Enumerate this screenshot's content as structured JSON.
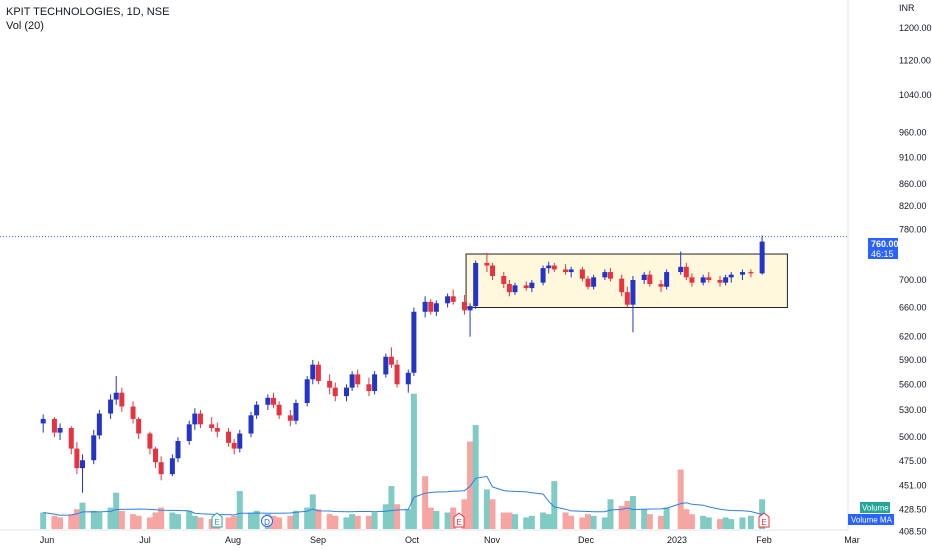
{
  "header": {
    "symbol_line": "KPIT TECHNOLOGIES, 1D, NSE",
    "volume_line": "Vol (20)"
  },
  "price_axis": {
    "currency": "INR",
    "ticks": [
      "1200.00",
      "1120.00",
      "1040.00",
      "960.00",
      "910.00",
      "860.00",
      "820.00",
      "780.00",
      "700.00",
      "660.00",
      "620.00",
      "590.00",
      "560.00",
      "530.00",
      "500.00",
      "475.00",
      "451.00",
      "428.50",
      "408.50"
    ],
    "last_price": "760.00",
    "countdown": "46:15",
    "volume_label": "Volume",
    "volume_ma_label": "Volume MA"
  },
  "time_axis": {
    "ticks": [
      "Jun",
      "Jul",
      "Aug",
      "Sep",
      "Oct",
      "Nov",
      "Dec",
      "2023",
      "Feb",
      "Mar"
    ]
  },
  "events": [
    {
      "letter": "E",
      "kind": "earnings"
    },
    {
      "letter": "D",
      "kind": "dividend"
    },
    {
      "letter": "E",
      "kind": "earnings"
    },
    {
      "letter": "E",
      "kind": "earnings"
    }
  ],
  "colors": {
    "up": "#2334c7",
    "down": "#e5343f",
    "vol_up": "#80cbc4",
    "vol_down": "#f7a5a3",
    "vol_ma": "#2f7fe8",
    "box_fill": "#fff8dd",
    "box_stroke": "#222222",
    "last_price_tag": "#2962ff",
    "volume_tag": "#26a69a"
  },
  "chart_data": {
    "type": "candlestick",
    "title": "KPIT TECHNOLOGIES, 1D, NSE",
    "x_range": [
      "2022-05-20",
      "2023-03-10"
    ],
    "y_scale": "log",
    "y_range": [
      400,
      1240
    ],
    "ohlc": [
      [
        "2022-05-20",
        515,
        525,
        505,
        520
      ],
      [
        "2022-05-24",
        520,
        522,
        500,
        505
      ],
      [
        "2022-05-26",
        505,
        515,
        497,
        510
      ],
      [
        "2022-05-30",
        510,
        512,
        482,
        488
      ],
      [
        "2022-06-01",
        488,
        495,
        462,
        468
      ],
      [
        "2022-06-03",
        468,
        482,
        444,
        476
      ],
      [
        "2022-06-07",
        476,
        508,
        472,
        502
      ],
      [
        "2022-06-09",
        502,
        530,
        498,
        526
      ],
      [
        "2022-06-13",
        526,
        548,
        520,
        542
      ],
      [
        "2022-06-15",
        542,
        570,
        536,
        550
      ],
      [
        "2022-06-17",
        550,
        556,
        528,
        534
      ],
      [
        "2022-06-21",
        534,
        540,
        515,
        520
      ],
      [
        "2022-06-23",
        520,
        522,
        498,
        504
      ],
      [
        "2022-06-27",
        504,
        506,
        482,
        488
      ],
      [
        "2022-06-29",
        488,
        490,
        468,
        474
      ],
      [
        "2022-07-01",
        474,
        480,
        456,
        462
      ],
      [
        "2022-07-05",
        462,
        482,
        460,
        478
      ],
      [
        "2022-07-07",
        478,
        500,
        474,
        496
      ],
      [
        "2022-07-11",
        496,
        518,
        492,
        514
      ],
      [
        "2022-07-13",
        514,
        532,
        508,
        526
      ],
      [
        "2022-07-15",
        526,
        530,
        510,
        514
      ],
      [
        "2022-07-19",
        514,
        522,
        506,
        510
      ],
      [
        "2022-07-21",
        510,
        516,
        500,
        506
      ],
      [
        "2022-07-25",
        506,
        510,
        490,
        494
      ],
      [
        "2022-07-27",
        494,
        498,
        482,
        488
      ],
      [
        "2022-07-29",
        488,
        508,
        484,
        504
      ],
      [
        "2022-08-02",
        504,
        528,
        500,
        524
      ],
      [
        "2022-08-04",
        524,
        540,
        520,
        536
      ],
      [
        "2022-08-08",
        536,
        548,
        530,
        544
      ],
      [
        "2022-08-10",
        544,
        550,
        532,
        536
      ],
      [
        "2022-08-12",
        536,
        540,
        520,
        524
      ],
      [
        "2022-08-16",
        524,
        530,
        512,
        518
      ],
      [
        "2022-08-18",
        518,
        542,
        514,
        538
      ],
      [
        "2022-08-22",
        538,
        570,
        534,
        566
      ],
      [
        "2022-08-24",
        566,
        590,
        560,
        584
      ],
      [
        "2022-08-26",
        584,
        588,
        560,
        564
      ],
      [
        "2022-08-30",
        564,
        572,
        548,
        556
      ],
      [
        "2022-09-01",
        556,
        562,
        540,
        546
      ],
      [
        "2022-09-05",
        546,
        560,
        540,
        556
      ],
      [
        "2022-09-07",
        556,
        576,
        552,
        572
      ],
      [
        "2022-09-09",
        572,
        578,
        556,
        560
      ],
      [
        "2022-09-13",
        560,
        568,
        546,
        552
      ],
      [
        "2022-09-15",
        552,
        576,
        548,
        572
      ],
      [
        "2022-09-19",
        572,
        598,
        568,
        594
      ],
      [
        "2022-09-21",
        594,
        606,
        580,
        584
      ],
      [
        "2022-09-23",
        584,
        590,
        556,
        560
      ],
      [
        "2022-09-27",
        560,
        578,
        550,
        574
      ],
      [
        "2022-09-29",
        574,
        660,
        570,
        654
      ],
      [
        "2022-10-03",
        654,
        676,
        646,
        668
      ],
      [
        "2022-10-05",
        668,
        672,
        650,
        654
      ],
      [
        "2022-10-07",
        654,
        670,
        648,
        666
      ],
      [
        "2022-10-11",
        666,
        680,
        660,
        676
      ],
      [
        "2022-10-13",
        676,
        686,
        664,
        668
      ],
      [
        "2022-10-17",
        668,
        678,
        650,
        656
      ],
      [
        "2022-10-19",
        656,
        666,
        620,
        662
      ],
      [
        "2022-10-21",
        662,
        730,
        658,
        726
      ],
      [
        "2022-10-25",
        726,
        742,
        712,
        722
      ],
      [
        "2022-10-27",
        722,
        726,
        700,
        706
      ],
      [
        "2022-10-31",
        706,
        712,
        688,
        694
      ],
      [
        "2022-11-02",
        694,
        700,
        676,
        682
      ],
      [
        "2022-11-04",
        682,
        696,
        678,
        692
      ],
      [
        "2022-11-08",
        692,
        698,
        684,
        688
      ],
      [
        "2022-11-10",
        688,
        700,
        682,
        696
      ],
      [
        "2022-11-14",
        696,
        722,
        692,
        718
      ],
      [
        "2022-11-16",
        718,
        728,
        710,
        722
      ],
      [
        "2022-11-18",
        722,
        726,
        712,
        716
      ],
      [
        "2022-11-22",
        716,
        724,
        708,
        712
      ],
      [
        "2022-11-24",
        712,
        720,
        704,
        716
      ],
      [
        "2022-11-28",
        716,
        720,
        698,
        702
      ],
      [
        "2022-11-30",
        702,
        706,
        686,
        690
      ],
      [
        "2022-12-02",
        690,
        708,
        686,
        704
      ],
      [
        "2022-12-06",
        704,
        716,
        700,
        712
      ],
      [
        "2022-12-08",
        712,
        718,
        698,
        702
      ],
      [
        "2022-12-12",
        702,
        708,
        676,
        682
      ],
      [
        "2022-12-14",
        682,
        690,
        660,
        664
      ],
      [
        "2022-12-16",
        664,
        706,
        626,
        700
      ],
      [
        "2022-12-20",
        700,
        712,
        694,
        708
      ],
      [
        "2022-12-22",
        708,
        714,
        690,
        694
      ],
      [
        "2022-12-26",
        694,
        700,
        682,
        690
      ],
      [
        "2022-12-28",
        690,
        716,
        686,
        712
      ],
      [
        "2023-01-02",
        712,
        744,
        708,
        720
      ],
      [
        "2023-01-04",
        720,
        726,
        700,
        704
      ],
      [
        "2023-01-06",
        704,
        710,
        690,
        696
      ],
      [
        "2023-01-10",
        696,
        708,
        692,
        704
      ],
      [
        "2023-01-12",
        704,
        712,
        696,
        700
      ],
      [
        "2023-01-16",
        700,
        706,
        690,
        696
      ],
      [
        "2023-01-18",
        696,
        708,
        692,
        704
      ],
      [
        "2023-01-20",
        704,
        712,
        696,
        708
      ],
      [
        "2023-01-24",
        708,
        716,
        700,
        712
      ],
      [
        "2023-01-27",
        712,
        716,
        704,
        710
      ],
      [
        "2023-01-31",
        710,
        770,
        708,
        760
      ]
    ],
    "volume": [
      [
        "2022-05-20",
        1.0,
        "up"
      ],
      [
        "2022-05-24",
        0.8,
        "down"
      ],
      [
        "2022-05-26",
        0.7,
        "down"
      ],
      [
        "2022-05-30",
        0.9,
        "down"
      ],
      [
        "2022-06-01",
        1.2,
        "down"
      ],
      [
        "2022-06-03",
        1.6,
        "up"
      ],
      [
        "2022-06-07",
        1.1,
        "up"
      ],
      [
        "2022-06-09",
        1.0,
        "up"
      ],
      [
        "2022-06-13",
        1.3,
        "up"
      ],
      [
        "2022-06-15",
        2.2,
        "up"
      ],
      [
        "2022-06-17",
        1.1,
        "down"
      ],
      [
        "2022-06-21",
        0.9,
        "down"
      ],
      [
        "2022-06-23",
        0.8,
        "down"
      ],
      [
        "2022-06-27",
        0.7,
        "down"
      ],
      [
        "2022-06-29",
        1.0,
        "down"
      ],
      [
        "2022-07-01",
        1.3,
        "down"
      ],
      [
        "2022-07-05",
        1.0,
        "up"
      ],
      [
        "2022-07-07",
        0.9,
        "up"
      ],
      [
        "2022-07-11",
        1.1,
        "up"
      ],
      [
        "2022-07-13",
        0.8,
        "up"
      ],
      [
        "2022-07-15",
        0.7,
        "down"
      ],
      [
        "2022-07-19",
        0.6,
        "down"
      ],
      [
        "2022-07-21",
        0.6,
        "down"
      ],
      [
        "2022-07-25",
        0.7,
        "down"
      ],
      [
        "2022-07-27",
        0.8,
        "down"
      ],
      [
        "2022-07-29",
        2.3,
        "up"
      ],
      [
        "2022-08-02",
        1.0,
        "up"
      ],
      [
        "2022-08-04",
        1.1,
        "up"
      ],
      [
        "2022-08-08",
        0.9,
        "up"
      ],
      [
        "2022-08-10",
        0.8,
        "down"
      ],
      [
        "2022-08-12",
        0.7,
        "down"
      ],
      [
        "2022-08-16",
        0.8,
        "down"
      ],
      [
        "2022-08-18",
        1.1,
        "up"
      ],
      [
        "2022-08-22",
        1.3,
        "up"
      ],
      [
        "2022-08-24",
        2.1,
        "up"
      ],
      [
        "2022-08-26",
        1.2,
        "down"
      ],
      [
        "2022-08-30",
        0.9,
        "down"
      ],
      [
        "2022-09-01",
        0.8,
        "down"
      ],
      [
        "2022-09-05",
        0.7,
        "up"
      ],
      [
        "2022-09-07",
        0.9,
        "up"
      ],
      [
        "2022-09-09",
        0.8,
        "down"
      ],
      [
        "2022-09-13",
        0.8,
        "down"
      ],
      [
        "2022-09-15",
        1.0,
        "up"
      ],
      [
        "2022-09-19",
        1.5,
        "up"
      ],
      [
        "2022-09-21",
        2.6,
        "up"
      ],
      [
        "2022-09-23",
        1.5,
        "down"
      ],
      [
        "2022-09-27",
        1.2,
        "up"
      ],
      [
        "2022-09-29",
        8.2,
        "up"
      ],
      [
        "2022-10-03",
        3.2,
        "down"
      ],
      [
        "2022-10-05",
        1.3,
        "down"
      ],
      [
        "2022-10-07",
        1.1,
        "up"
      ],
      [
        "2022-10-11",
        1.0,
        "up"
      ],
      [
        "2022-10-13",
        1.3,
        "down"
      ],
      [
        "2022-10-17",
        1.8,
        "down"
      ],
      [
        "2022-10-19",
        5.3,
        "down"
      ],
      [
        "2022-10-21",
        6.3,
        "up"
      ],
      [
        "2022-10-25",
        2.4,
        "up"
      ],
      [
        "2022-10-27",
        1.8,
        "down"
      ],
      [
        "2022-10-31",
        1.0,
        "down"
      ],
      [
        "2022-11-02",
        1.0,
        "down"
      ],
      [
        "2022-11-04",
        0.9,
        "up"
      ],
      [
        "2022-11-08",
        0.7,
        "up"
      ],
      [
        "2022-11-10",
        0.8,
        "up"
      ],
      [
        "2022-11-14",
        1.0,
        "up"
      ],
      [
        "2022-11-16",
        0.9,
        "up"
      ],
      [
        "2022-11-18",
        2.9,
        "up"
      ],
      [
        "2022-11-22",
        1.0,
        "down"
      ],
      [
        "2022-11-24",
        0.8,
        "down"
      ],
      [
        "2022-11-28",
        0.7,
        "down"
      ],
      [
        "2022-11-30",
        0.9,
        "down"
      ],
      [
        "2022-12-02",
        0.8,
        "up"
      ],
      [
        "2022-12-06",
        0.7,
        "up"
      ],
      [
        "2022-12-08",
        1.8,
        "up"
      ],
      [
        "2022-12-12",
        1.4,
        "down"
      ],
      [
        "2022-12-14",
        1.7,
        "down"
      ],
      [
        "2022-12-16",
        2.0,
        "up"
      ],
      [
        "2022-12-20",
        1.2,
        "up"
      ],
      [
        "2022-12-22",
        0.9,
        "down"
      ],
      [
        "2022-12-26",
        0.8,
        "down"
      ],
      [
        "2022-12-28",
        1.3,
        "up"
      ],
      [
        "2023-01-02",
        3.6,
        "down"
      ],
      [
        "2023-01-04",
        1.2,
        "down"
      ],
      [
        "2023-01-06",
        0.9,
        "down"
      ],
      [
        "2023-01-10",
        0.8,
        "up"
      ],
      [
        "2023-01-12",
        0.7,
        "up"
      ],
      [
        "2023-01-16",
        0.6,
        "down"
      ],
      [
        "2023-01-18",
        0.7,
        "up"
      ],
      [
        "2023-01-20",
        0.6,
        "up"
      ],
      [
        "2023-01-24",
        0.7,
        "up"
      ],
      [
        "2023-01-27",
        0.8,
        "up"
      ],
      [
        "2023-01-31",
        1.8,
        "up"
      ]
    ],
    "consolidation_box": {
      "from": "2022-10-19",
      "to": "2023-02-09",
      "low": 660,
      "high": 740
    }
  }
}
